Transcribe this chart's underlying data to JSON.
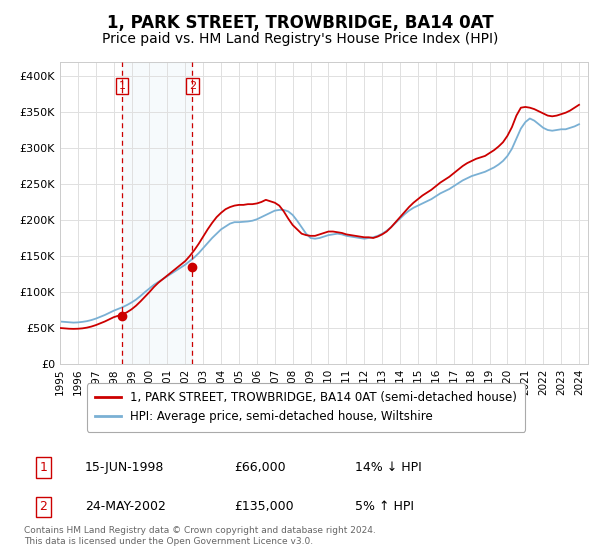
{
  "title": "1, PARK STREET, TROWBRIDGE, BA14 0AT",
  "subtitle": "Price paid vs. HM Land Registry's House Price Index (HPI)",
  "title_fontsize": 12,
  "subtitle_fontsize": 10,
  "ylim": [
    0,
    420000
  ],
  "yticks": [
    0,
    50000,
    100000,
    150000,
    200000,
    250000,
    300000,
    350000,
    400000
  ],
  "ytick_labels": [
    "£0",
    "£50K",
    "£100K",
    "£150K",
    "£200K",
    "£250K",
    "£300K",
    "£350K",
    "£400K"
  ],
  "background_color": "#ffffff",
  "grid_color": "#e0e0e0",
  "sale_color": "#cc0000",
  "hpi_color": "#7ab0d4",
  "hpi_fill_color": "#c8dff0",
  "purchase_box_color": "#cc0000",
  "vertical_line_color": "#cc0000",
  "legend_label_sale": "1, PARK STREET, TROWBRIDGE, BA14 0AT (semi-detached house)",
  "legend_label_hpi": "HPI: Average price, semi-detached house, Wiltshire",
  "sale_year_floats": [
    1998.458,
    2002.389
  ],
  "sale_prices": [
    66000,
    135000
  ],
  "sale_labels": [
    "1",
    "2"
  ],
  "shade_between_sales": true,
  "table_rows": [
    [
      "1",
      "15-JUN-1998",
      "£66,000",
      "14% ↓ HPI"
    ],
    [
      "2",
      "24-MAY-2002",
      "£135,000",
      "5% ↑ HPI"
    ]
  ],
  "footer_text": "Contains HM Land Registry data © Crown copyright and database right 2024.\nThis data is licensed under the Open Government Licence v3.0.",
  "hpi_years": [
    1995.0,
    1995.25,
    1995.5,
    1995.75,
    1996.0,
    1996.25,
    1996.5,
    1996.75,
    1997.0,
    1997.25,
    1997.5,
    1997.75,
    1998.0,
    1998.25,
    1998.5,
    1998.75,
    1999.0,
    1999.25,
    1999.5,
    1999.75,
    2000.0,
    2000.25,
    2000.5,
    2000.75,
    2001.0,
    2001.25,
    2001.5,
    2001.75,
    2002.0,
    2002.25,
    2002.5,
    2002.75,
    2003.0,
    2003.25,
    2003.5,
    2003.75,
    2004.0,
    2004.25,
    2004.5,
    2004.75,
    2005.0,
    2005.25,
    2005.5,
    2005.75,
    2006.0,
    2006.25,
    2006.5,
    2006.75,
    2007.0,
    2007.25,
    2007.5,
    2007.75,
    2008.0,
    2008.25,
    2008.5,
    2008.75,
    2009.0,
    2009.25,
    2009.5,
    2009.75,
    2010.0,
    2010.25,
    2010.5,
    2010.75,
    2011.0,
    2011.25,
    2011.5,
    2011.75,
    2012.0,
    2012.25,
    2012.5,
    2012.75,
    2013.0,
    2013.25,
    2013.5,
    2013.75,
    2014.0,
    2014.25,
    2014.5,
    2014.75,
    2015.0,
    2015.25,
    2015.5,
    2015.75,
    2016.0,
    2016.25,
    2016.5,
    2016.75,
    2017.0,
    2017.25,
    2017.5,
    2017.75,
    2018.0,
    2018.25,
    2018.5,
    2018.75,
    2019.0,
    2019.25,
    2019.5,
    2019.75,
    2020.0,
    2020.25,
    2020.5,
    2020.75,
    2021.0,
    2021.25,
    2021.5,
    2021.75,
    2022.0,
    2022.25,
    2022.5,
    2022.75,
    2023.0,
    2023.25,
    2023.5,
    2023.75,
    2024.0
  ],
  "hpi_values": [
    59000,
    58500,
    58000,
    57500,
    57800,
    58500,
    59500,
    61000,
    63000,
    65500,
    68000,
    71000,
    74000,
    76500,
    79000,
    82000,
    85500,
    89500,
    94500,
    100000,
    105000,
    110000,
    114000,
    118000,
    122000,
    126000,
    130000,
    134000,
    138000,
    143000,
    148000,
    154000,
    161000,
    168000,
    175000,
    181000,
    187000,
    191000,
    195000,
    197000,
    197000,
    197500,
    198000,
    199000,
    201000,
    204000,
    207000,
    210000,
    213000,
    214000,
    214000,
    212000,
    207000,
    199000,
    190000,
    181000,
    175000,
    174000,
    175000,
    177000,
    179000,
    180000,
    181000,
    180000,
    178000,
    177000,
    176000,
    175000,
    174000,
    175000,
    176000,
    178000,
    181000,
    185000,
    190000,
    196000,
    202000,
    208000,
    213000,
    217000,
    220000,
    223000,
    226000,
    229000,
    233000,
    237000,
    240000,
    243000,
    247000,
    251000,
    255000,
    258000,
    261000,
    263000,
    265000,
    267000,
    270000,
    273000,
    277000,
    282000,
    289000,
    299000,
    313000,
    327000,
    336000,
    341000,
    338000,
    333000,
    328000,
    325000,
    324000,
    325000,
    326000,
    326000,
    328000,
    330000,
    333000
  ],
  "sale_line_years": [
    1995.0,
    1995.25,
    1995.5,
    1995.75,
    1996.0,
    1996.25,
    1996.5,
    1996.75,
    1997.0,
    1997.25,
    1997.5,
    1997.75,
    1998.0,
    1998.25,
    1998.5,
    1998.75,
    1999.0,
    1999.25,
    1999.5,
    1999.75,
    2000.0,
    2000.25,
    2000.5,
    2000.75,
    2001.0,
    2001.25,
    2001.5,
    2001.75,
    2002.0,
    2002.25,
    2002.5,
    2002.75,
    2003.0,
    2003.25,
    2003.5,
    2003.75,
    2004.0,
    2004.25,
    2004.5,
    2004.75,
    2005.0,
    2005.25,
    2005.5,
    2005.75,
    2006.0,
    2006.25,
    2006.5,
    2006.75,
    2007.0,
    2007.25,
    2007.5,
    2007.75,
    2008.0,
    2008.25,
    2008.5,
    2008.75,
    2009.0,
    2009.25,
    2009.5,
    2009.75,
    2010.0,
    2010.25,
    2010.5,
    2010.75,
    2011.0,
    2011.25,
    2011.5,
    2011.75,
    2012.0,
    2012.25,
    2012.5,
    2012.75,
    2013.0,
    2013.25,
    2013.5,
    2013.75,
    2014.0,
    2014.25,
    2014.5,
    2014.75,
    2015.0,
    2015.25,
    2015.5,
    2015.75,
    2016.0,
    2016.25,
    2016.5,
    2016.75,
    2017.0,
    2017.25,
    2017.5,
    2017.75,
    2018.0,
    2018.25,
    2018.5,
    2018.75,
    2019.0,
    2019.25,
    2019.5,
    2019.75,
    2020.0,
    2020.25,
    2020.5,
    2020.75,
    2021.0,
    2021.25,
    2021.5,
    2021.75,
    2022.0,
    2022.25,
    2022.5,
    2022.75,
    2023.0,
    2023.25,
    2023.5,
    2023.75,
    2024.0
  ],
  "sale_line_values": [
    50000,
    49500,
    49000,
    48800,
    49000,
    49500,
    50500,
    52000,
    54000,
    56500,
    59000,
    62000,
    65000,
    67000,
    69000,
    72000,
    76000,
    81000,
    87000,
    93500,
    100000,
    107000,
    113000,
    118000,
    123000,
    128000,
    133000,
    138000,
    143000,
    150000,
    158000,
    167000,
    177000,
    187000,
    196000,
    204000,
    210000,
    215000,
    218000,
    220000,
    221000,
    221000,
    222000,
    222000,
    223000,
    225000,
    228000,
    226000,
    224000,
    220000,
    212000,
    202000,
    193000,
    187000,
    181000,
    179000,
    178000,
    178000,
    180000,
    182000,
    184000,
    184000,
    183000,
    182000,
    180000,
    179000,
    178000,
    177000,
    176000,
    176000,
    175000,
    177000,
    180000,
    184000,
    190000,
    197000,
    204000,
    211000,
    218000,
    224000,
    229000,
    234000,
    238000,
    242000,
    247000,
    252000,
    256000,
    260000,
    265000,
    270000,
    275000,
    279000,
    282000,
    285000,
    287000,
    289000,
    293000,
    297000,
    302000,
    308000,
    317000,
    329000,
    345000,
    356000,
    357000,
    356000,
    354000,
    351000,
    348000,
    345000,
    344000,
    345000,
    347000,
    349000,
    352000,
    356000,
    360000
  ],
  "xlim": [
    1995.0,
    2024.5
  ],
  "xticks": [
    1995,
    1996,
    1997,
    1998,
    1999,
    2000,
    2001,
    2002,
    2003,
    2004,
    2005,
    2006,
    2007,
    2008,
    2009,
    2010,
    2011,
    2012,
    2013,
    2014,
    2015,
    2016,
    2017,
    2018,
    2019,
    2020,
    2021,
    2022,
    2023,
    2024
  ]
}
